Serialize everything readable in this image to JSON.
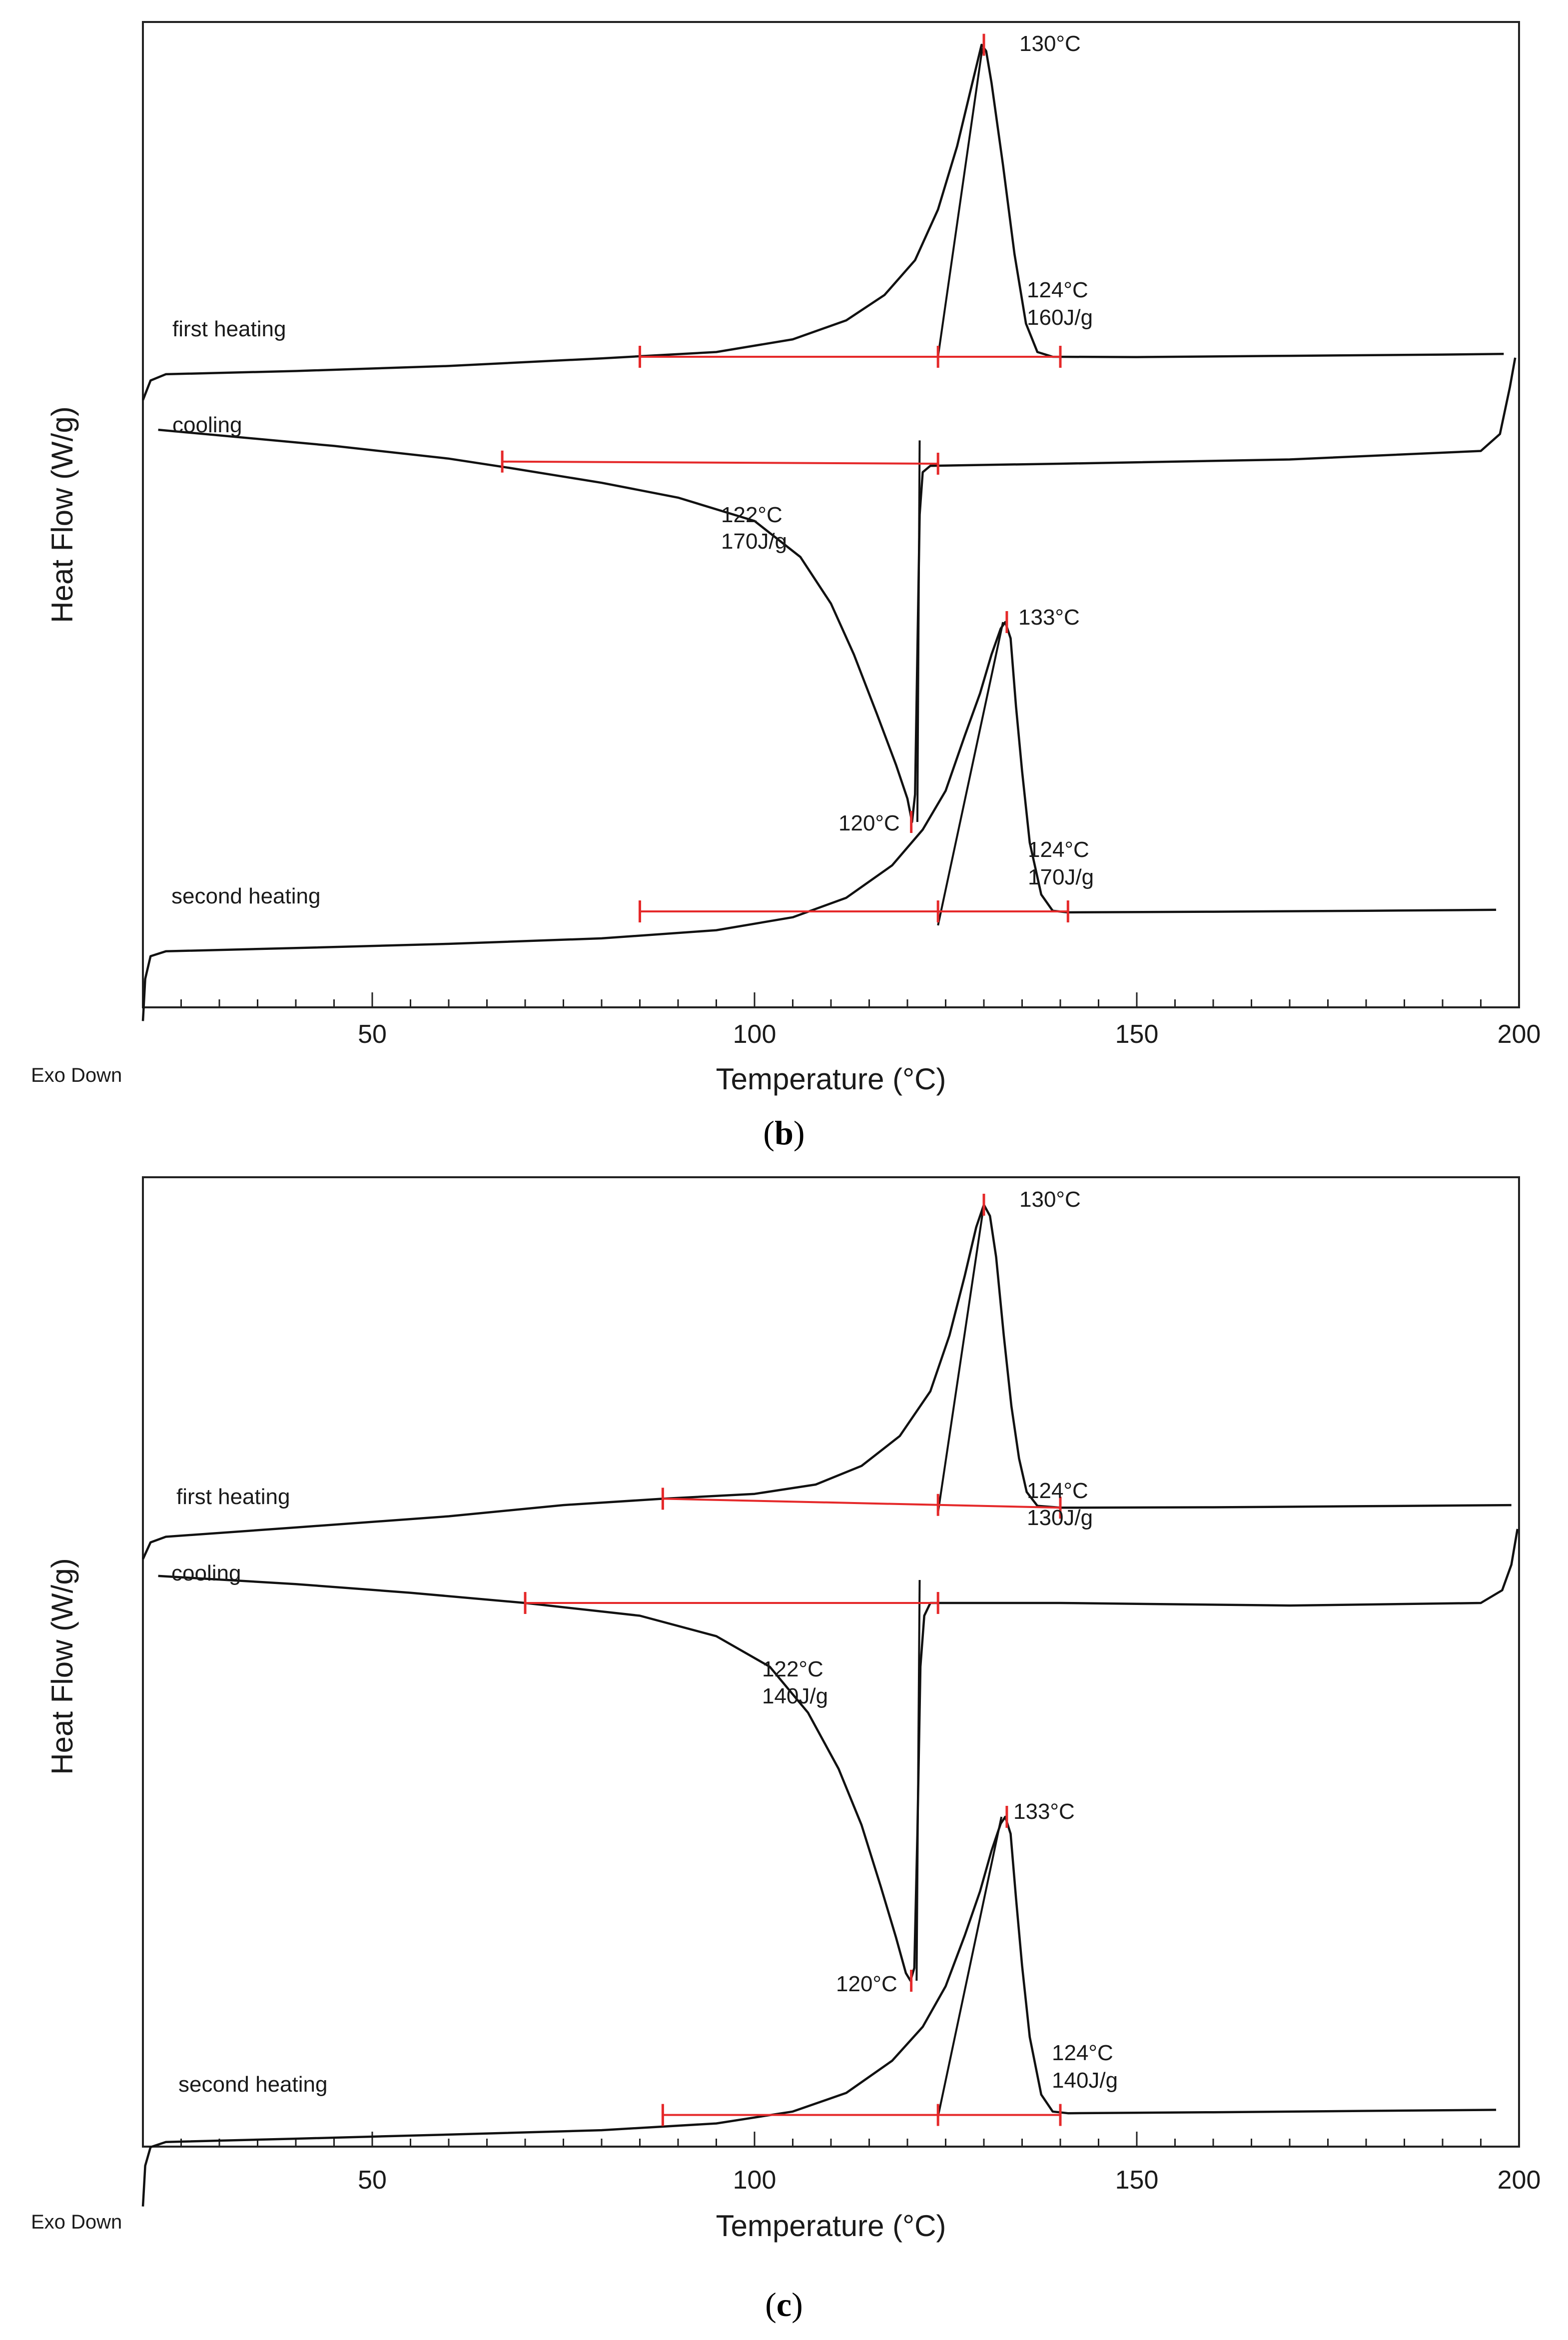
{
  "chart_data": [
    {
      "type": "line",
      "panel_label": "b",
      "ylabel": "Heat Flow (W/g)",
      "xlabel": "Temperature (°C)",
      "corner_note": "Exo Down",
      "xlim": [
        20,
        200
      ],
      "x_ticks": [
        50,
        100,
        150,
        200
      ],
      "colors": {
        "curve": "#111111",
        "baseline": "#e5292a",
        "frame": "#222222"
      },
      "series": [
        {
          "name": "first heating",
          "label": "first heating",
          "points": [
            [
              20,
              -0.82
            ],
            [
              21,
              -0.2
            ],
            [
              23,
              0
            ],
            [
              40,
              0.1
            ],
            [
              60,
              0.26
            ],
            [
              80,
              0.5
            ],
            [
              95,
              0.7
            ],
            [
              105,
              1.1
            ],
            [
              112,
              1.7
            ],
            [
              117,
              2.5
            ],
            [
              121,
              3.6
            ],
            [
              124,
              5.2
            ],
            [
              126.5,
              7.2
            ],
            [
              128.5,
              9.2
            ],
            [
              129.7,
              10.4
            ],
            [
              130.3,
              10.2
            ],
            [
              131,
              9.2
            ],
            [
              132.5,
              6.6
            ],
            [
              134,
              3.8
            ],
            [
              135.5,
              1.6
            ],
            [
              137,
              0.7
            ],
            [
              139,
              0.55
            ],
            [
              150,
              0.54
            ],
            [
              170,
              0.58
            ],
            [
              190,
              0.62
            ],
            [
              198,
              0.64
            ]
          ],
          "onset_line": [
            [
              124,
              0.55
            ],
            [
              129.8,
              10.3
            ]
          ],
          "baseline": [
            [
              85,
              0.55
            ],
            [
              140,
              0.55
            ]
          ],
          "markers": [
            85,
            124,
            140,
            130
          ],
          "annotations": [
            "130°C",
            "124°C",
            "160J/g"
          ]
        },
        {
          "name": "cooling",
          "label": "cooling",
          "points": [
            [
              22,
              8.3
            ],
            [
              45,
              7.92
            ],
            [
              60,
              7.62
            ],
            [
              68,
              7.4
            ],
            [
              80,
              7.05
            ],
            [
              90,
              6.7
            ],
            [
              100,
              6.15
            ],
            [
              106,
              5.3
            ],
            [
              110,
              4.2
            ],
            [
              113,
              3
            ],
            [
              116,
              1.6
            ],
            [
              118.5,
              0.4
            ],
            [
              120,
              -0.4
            ],
            [
              120.6,
              -0.95
            ],
            [
              121,
              -0.3
            ],
            [
              121.3,
              3
            ],
            [
              121.6,
              6.3
            ],
            [
              122,
              7.3
            ],
            [
              123,
              7.45
            ],
            [
              140,
              7.5
            ],
            [
              170,
              7.6
            ],
            [
              195,
              7.8
            ],
            [
              197.5,
              8.2
            ],
            [
              198.8,
              9.3
            ],
            [
              199.5,
              10
            ]
          ],
          "onset_line": [
            [
              121.3,
              -0.95
            ],
            [
              121.6,
              8.05
            ]
          ],
          "baseline": [
            [
              67,
              7.55
            ],
            [
              124,
              7.5
            ]
          ],
          "markers": [
            67,
            124,
            120.5
          ],
          "annotations": [
            "122°C",
            "170J/g",
            "120°C"
          ]
        },
        {
          "name": "second heating",
          "label": "second heating",
          "points": [
            [
              20,
              -2.5
            ],
            [
              20.3,
              -1.2
            ],
            [
              21,
              -0.5
            ],
            [
              23,
              -0.35
            ],
            [
              40,
              -0.25
            ],
            [
              60,
              -0.12
            ],
            [
              80,
              0.05
            ],
            [
              95,
              0.3
            ],
            [
              105,
              0.7
            ],
            [
              112,
              1.3
            ],
            [
              118,
              2.3
            ],
            [
              122,
              3.4
            ],
            [
              125,
              4.6
            ],
            [
              127.5,
              6.3
            ],
            [
              129.5,
              7.6
            ],
            [
              131,
              8.8
            ],
            [
              132.2,
              9.6
            ],
            [
              132.8,
              9.8
            ],
            [
              133.5,
              9.3
            ],
            [
              134.2,
              7.2
            ],
            [
              135,
              5.2
            ],
            [
              136,
              3
            ],
            [
              137.5,
              1.4
            ],
            [
              139,
              0.9
            ],
            [
              141,
              0.85
            ],
            [
              160,
              0.87
            ],
            [
              180,
              0.9
            ],
            [
              197,
              0.93
            ]
          ],
          "onset_line": [
            [
              124,
              0.45
            ],
            [
              132.5,
              9.8
            ]
          ],
          "baseline": [
            [
              85,
              0.88
            ],
            [
              141,
              0.88
            ]
          ],
          "markers": [
            85,
            124,
            141,
            133
          ],
          "annotations": [
            "133°C",
            "124°C",
            "170J/g"
          ]
        }
      ]
    },
    {
      "type": "line",
      "panel_label": "c",
      "ylabel": "Heat Flow (W/g)",
      "xlabel": "Temperature (°C)",
      "corner_note": "Exo Down",
      "xlim": [
        20,
        200
      ],
      "x_ticks": [
        50,
        100,
        150,
        200
      ],
      "colors": {
        "curve": "#111111",
        "baseline": "#e5292a",
        "frame": "#222222"
      },
      "series": [
        {
          "name": "first heating",
          "label": "first heating",
          "points": [
            [
              20,
              -0.7
            ],
            [
              21,
              -0.25
            ],
            [
              23,
              -0.1
            ],
            [
              40,
              0.15
            ],
            [
              60,
              0.45
            ],
            [
              75,
              0.75
            ],
            [
              88,
              0.92
            ],
            [
              100,
              1.05
            ],
            [
              108,
              1.3
            ],
            [
              114,
              1.8
            ],
            [
              119,
              2.6
            ],
            [
              123,
              3.8
            ],
            [
              125.5,
              5.3
            ],
            [
              127.5,
              6.9
            ],
            [
              129,
              8.2
            ],
            [
              130,
              8.8
            ],
            [
              130.8,
              8.5
            ],
            [
              131.6,
              7.4
            ],
            [
              132.6,
              5.3
            ],
            [
              133.6,
              3.4
            ],
            [
              134.6,
              2
            ],
            [
              135.6,
              1.1
            ],
            [
              137,
              0.73
            ],
            [
              140,
              0.68
            ],
            [
              160,
              0.69
            ],
            [
              180,
              0.72
            ],
            [
              199,
              0.75
            ]
          ],
          "onset_line": [
            [
              124,
              0.55
            ],
            [
              130,
              8.8
            ]
          ],
          "baseline": [
            [
              88,
              0.92
            ],
            [
              140,
              0.68
            ]
          ],
          "markers": [
            88,
            124,
            140,
            130
          ],
          "annotations": [
            "130°C",
            "124°C",
            "130J/g"
          ]
        },
        {
          "name": "cooling",
          "label": "cooling",
          "points": [
            [
              22,
              7.08
            ],
            [
              40,
              6.92
            ],
            [
              55,
              6.75
            ],
            [
              70,
              6.55
            ],
            [
              85,
              6.3
            ],
            [
              95,
              5.9
            ],
            [
              102,
              5.3
            ],
            [
              107,
              4.4
            ],
            [
              111,
              3.3
            ],
            [
              114,
              2.2
            ],
            [
              116.5,
              1
            ],
            [
              118.5,
              0
            ],
            [
              119.8,
              -0.7
            ],
            [
              120.4,
              -0.85
            ],
            [
              120.9,
              -0.6
            ],
            [
              121.3,
              2
            ],
            [
              121.7,
              5.3
            ],
            [
              122.2,
              6.3
            ],
            [
              123,
              6.55
            ],
            [
              140,
              6.55
            ],
            [
              170,
              6.5
            ],
            [
              195,
              6.55
            ],
            [
              197.8,
              6.8
            ],
            [
              199,
              7.3
            ],
            [
              199.8,
              8
            ]
          ],
          "onset_line": [
            [
              121.2,
              -0.85
            ],
            [
              121.6,
              7
            ]
          ],
          "baseline": [
            [
              70,
              6.55
            ],
            [
              124,
              6.55
            ]
          ],
          "markers": [
            70,
            124,
            120.5
          ],
          "annotations": [
            "122°C",
            "140J/g",
            "120°C"
          ]
        },
        {
          "name": "second heating",
          "label": "second heating",
          "points": [
            [
              20,
              -2.2
            ],
            [
              20.3,
              -1
            ],
            [
              21,
              -0.45
            ],
            [
              23,
              -0.3
            ],
            [
              40,
              -0.2
            ],
            [
              60,
              -0.08
            ],
            [
              80,
              0.05
            ],
            [
              95,
              0.25
            ],
            [
              105,
              0.6
            ],
            [
              112,
              1.15
            ],
            [
              118,
              2.1
            ],
            [
              122,
              3.1
            ],
            [
              125,
              4.3
            ],
            [
              127.5,
              5.8
            ],
            [
              129.5,
              7.1
            ],
            [
              131,
              8.3
            ],
            [
              132.2,
              9.1
            ],
            [
              132.8,
              9.3
            ],
            [
              133.5,
              8.8
            ],
            [
              134.2,
              6.9
            ],
            [
              135,
              4.9
            ],
            [
              136,
              2.8
            ],
            [
              137.5,
              1.1
            ],
            [
              139,
              0.6
            ],
            [
              141,
              0.55
            ],
            [
              160,
              0.58
            ],
            [
              180,
              0.62
            ],
            [
              197,
              0.65
            ]
          ],
          "onset_line": [
            [
              124,
              0.45
            ],
            [
              132.3,
              9.3
            ]
          ],
          "baseline": [
            [
              88,
              0.5
            ],
            [
              140,
              0.5
            ]
          ],
          "markers": [
            88,
            124,
            140,
            133
          ],
          "annotations": [
            "133°C",
            "124°C",
            "140J/g"
          ]
        }
      ]
    }
  ]
}
